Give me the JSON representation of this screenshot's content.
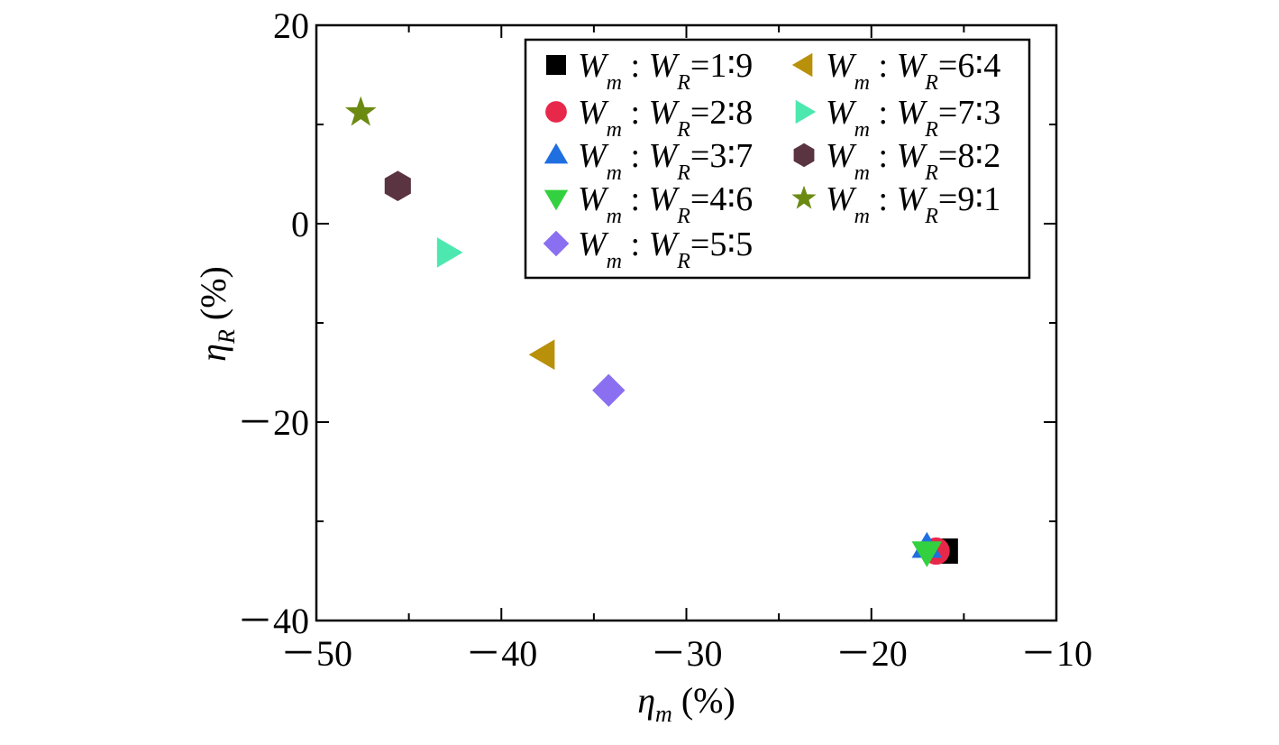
{
  "chart_data": {
    "type": "scatter",
    "title": "",
    "xlabel": {
      "symbol": "η",
      "sub": "m",
      "unit": " (%)"
    },
    "ylabel": {
      "symbol": "η",
      "sub": "R",
      "unit": " (%)"
    },
    "xlim": [
      -50,
      -10
    ],
    "ylim": [
      -40,
      20
    ],
    "x_ticks": [
      -50,
      -40,
      -30,
      -20,
      -10
    ],
    "y_ticks": [
      -40,
      -20,
      0,
      20
    ],
    "x_tick_labels": [
      "－50",
      "－40",
      "－30",
      "－20",
      "－10"
    ],
    "y_tick_labels": [
      "－40",
      "－20",
      "0",
      "20"
    ],
    "grid": false,
    "legend_position": "top-right",
    "series": [
      {
        "name": "Wm : WR=1 : 9",
        "ratio": "1∶9",
        "marker": "square",
        "color": "#000000",
        "x": -16.0,
        "y": -33.0
      },
      {
        "name": "Wm : WR=2 : 8",
        "ratio": "2∶8",
        "marker": "circle",
        "color": "#e8284a",
        "x": -16.5,
        "y": -33.0
      },
      {
        "name": "Wm : WR=3 : 7",
        "ratio": "3∶7",
        "marker": "triangle-up",
        "color": "#1f6fe0",
        "x": -17.0,
        "y": -32.6
      },
      {
        "name": "Wm : WR=4 : 6",
        "ratio": "4∶6",
        "marker": "triangle-down",
        "color": "#33d13f",
        "x": -17.0,
        "y": -33.1
      },
      {
        "name": "Wm : WR=5 : 5",
        "ratio": "5∶5",
        "marker": "diamond",
        "color": "#8a6ff0",
        "x": -34.2,
        "y": -16.8
      },
      {
        "name": "Wm : WR=6 : 4",
        "ratio": "6∶4",
        "marker": "triangle-left",
        "color": "#b8900a",
        "x": -37.7,
        "y": -13.2
      },
      {
        "name": "Wm : WR=7 : 3",
        "ratio": "7∶3",
        "marker": "triangle-right",
        "color": "#4de8b0",
        "x": -42.9,
        "y": -2.9
      },
      {
        "name": "Wm : WR=8 : 2",
        "ratio": "8∶2",
        "marker": "hexagon",
        "color": "#5a3440",
        "x": -45.6,
        "y": 3.8
      },
      {
        "name": "Wm : WR=9 : 1",
        "ratio": "9∶1",
        "marker": "star",
        "color": "#6b8a12",
        "x": -47.6,
        "y": 11.2
      }
    ]
  },
  "legend": {
    "main_letter": "W",
    "sub_m": "m",
    "sub_R": "R",
    "separator": " : ",
    "equals": "="
  }
}
